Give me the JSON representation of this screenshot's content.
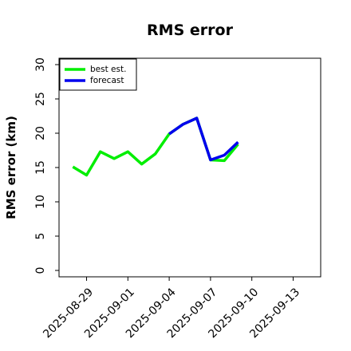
{
  "chart_data": {
    "type": "line",
    "title": "RMS error",
    "xlabel": "",
    "ylabel": "RMS error (km)",
    "ylim": [
      0,
      30
    ],
    "yticks": [
      0,
      5,
      10,
      15,
      20,
      25,
      30
    ],
    "xlim": [
      "2025-08-27",
      "2025-09-15"
    ],
    "xticks": [
      {
        "date": "2025-08-29",
        "label": "2025-08-29",
        "color": "#000000"
      },
      {
        "date": "2025-09-01",
        "label": "2025-09-01",
        "color": "#000000"
      },
      {
        "date": "2025-09-04",
        "label": "2025-09-04",
        "color": "#228b22"
      },
      {
        "date": "2025-09-07",
        "label": "2025-09-07",
        "color": "#000000"
      },
      {
        "date": "2025-09-10",
        "label": "2025-09-10",
        "color": "#000000"
      },
      {
        "date": "2025-09-13",
        "label": "2025-09-13",
        "color": "#000000"
      }
    ],
    "grid": false,
    "legend_position": "top-left",
    "series": [
      {
        "name": "best est.",
        "color": "#00ee00",
        "x": [
          "2025-08-28",
          "2025-08-29",
          "2025-08-30",
          "2025-08-31",
          "2025-09-01",
          "2025-09-02",
          "2025-09-03",
          "2025-09-04",
          "2025-09-05",
          "2025-09-06",
          "2025-09-07",
          "2025-09-08",
          "2025-09-09"
        ],
        "values": [
          15.1,
          13.9,
          17.3,
          16.3,
          17.3,
          15.5,
          17.0,
          19.9,
          21.3,
          22.2,
          16.1,
          16.0,
          18.4
        ]
      },
      {
        "name": "forecast",
        "color": "#0000ee",
        "x": [
          "2025-09-04",
          "2025-09-05",
          "2025-09-06",
          "2025-09-07",
          "2025-09-08",
          "2025-09-09"
        ],
        "values": [
          19.9,
          21.3,
          22.2,
          16.1,
          16.8,
          18.7
        ]
      }
    ]
  }
}
